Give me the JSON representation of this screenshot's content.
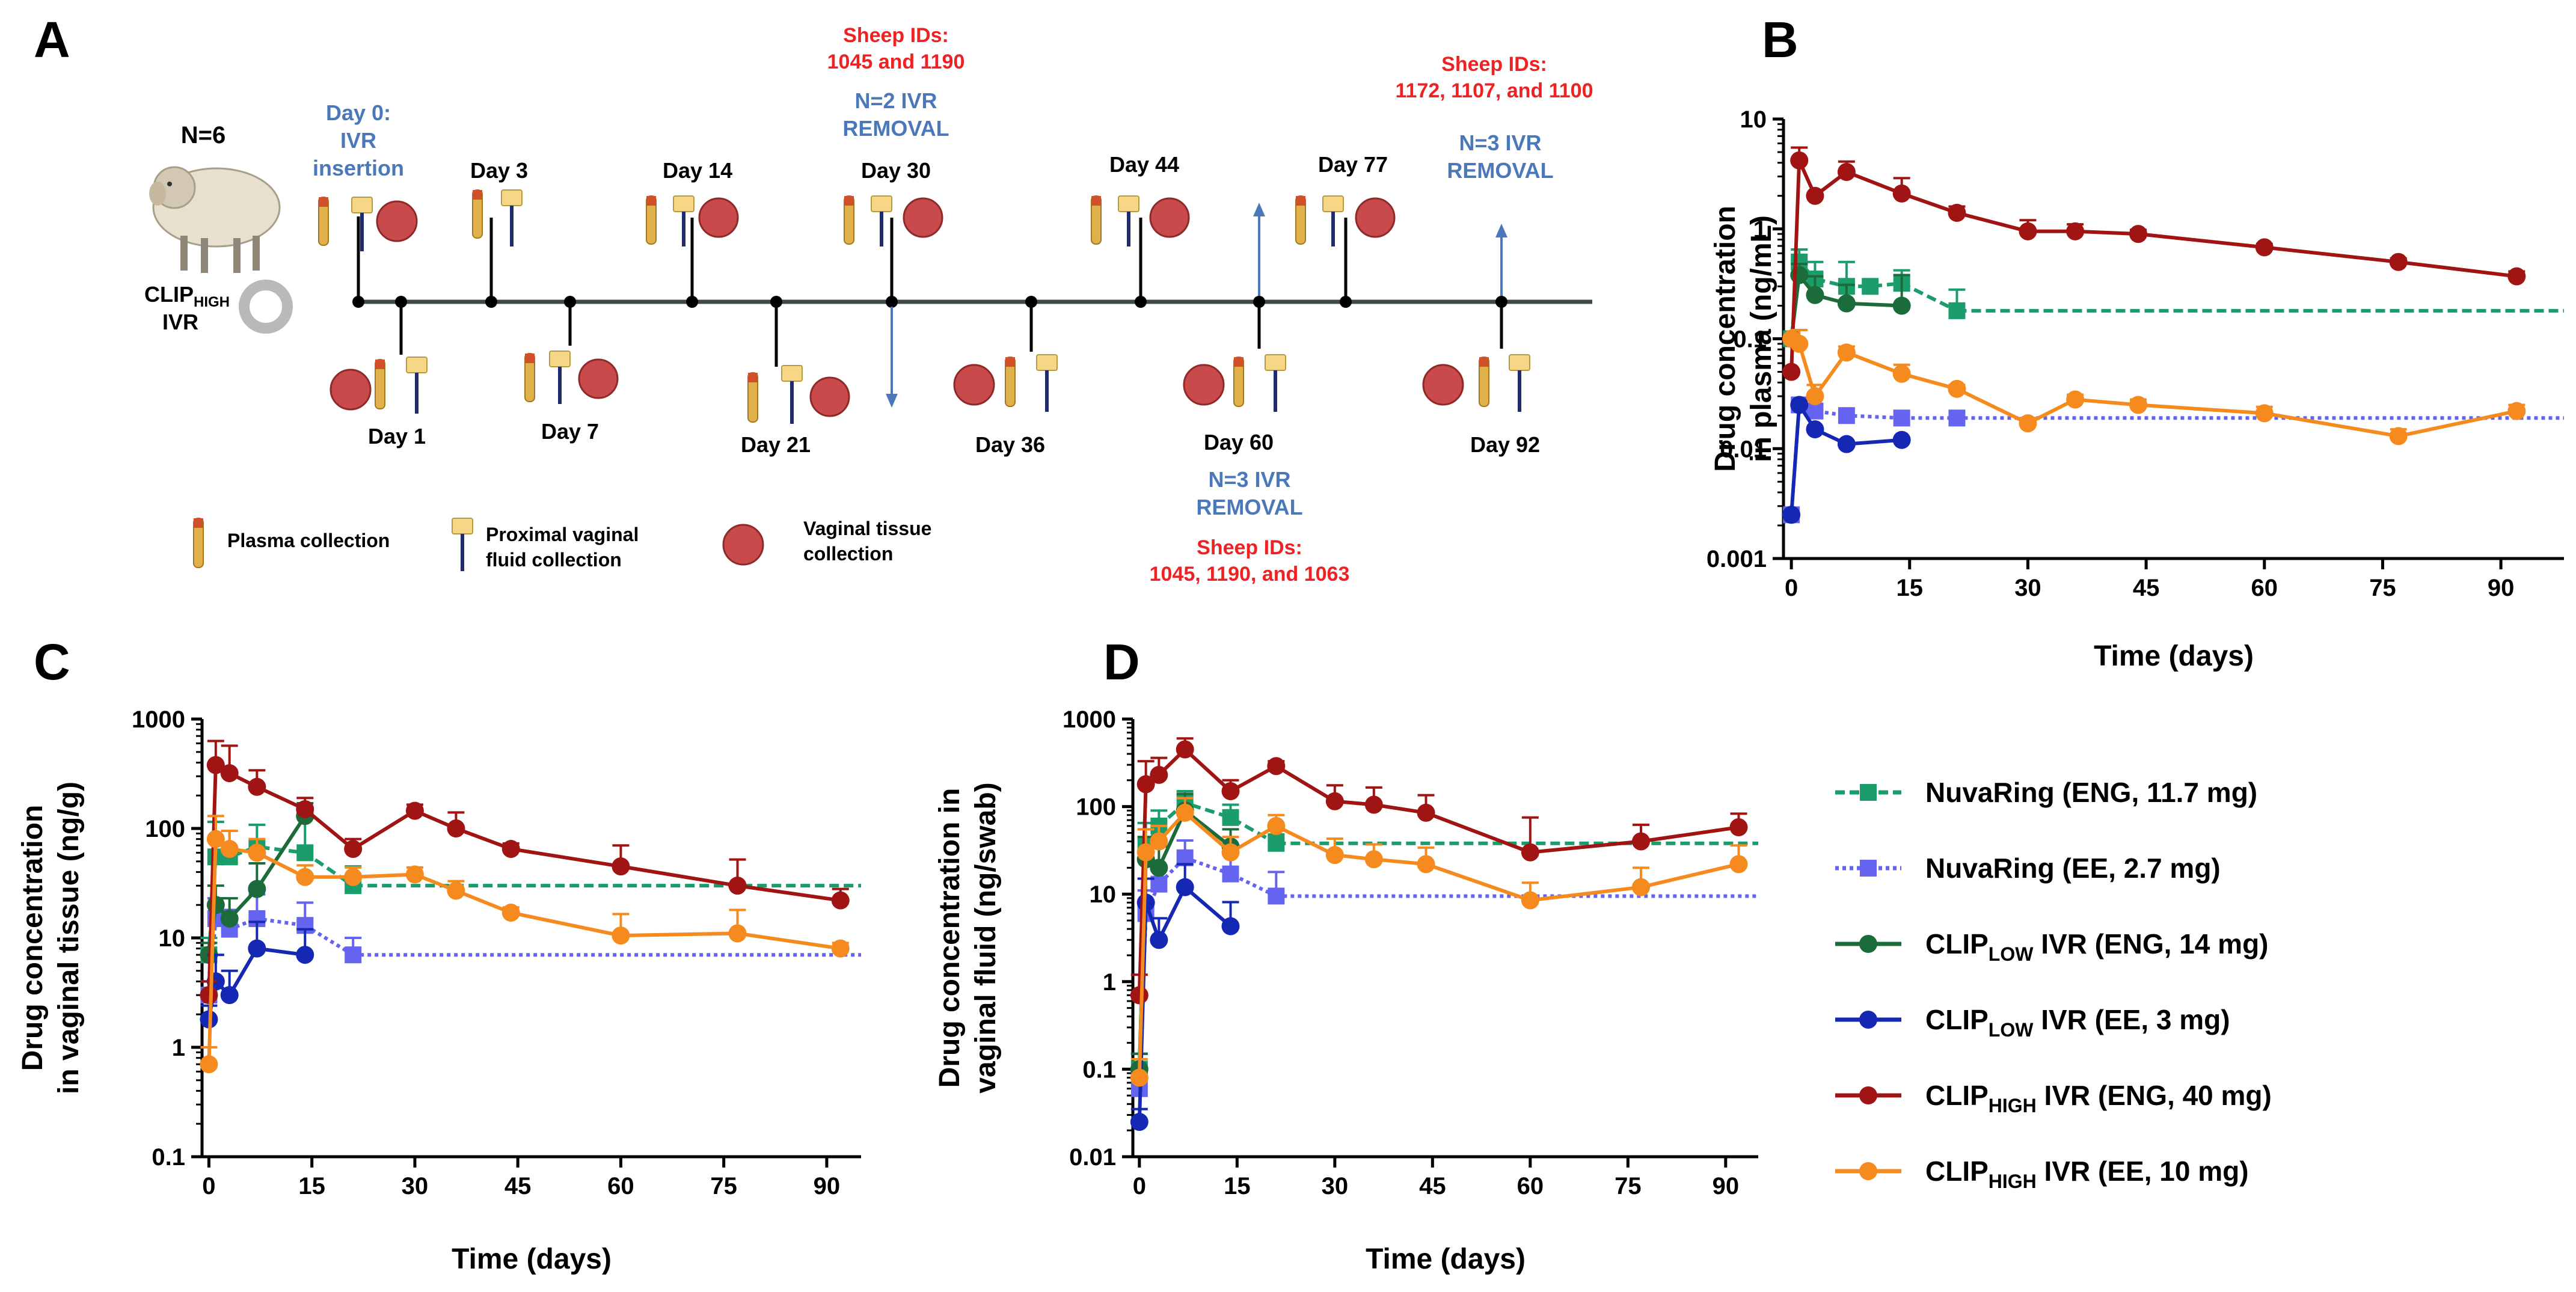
{
  "panelA": {
    "letter": "A",
    "n_label": "N=6",
    "clip_label": "CLIP",
    "clip_sub": "HIGH",
    "ivr_label": "IVR",
    "day0_line1": "Day 0:",
    "day0_line2": "IVR",
    "day0_line3": "insertion",
    "days_top": [
      "Day 3",
      "Day 14",
      "Day 30",
      "Day 44",
      "Day 77"
    ],
    "days_bottom": [
      "Day 1",
      "Day 7",
      "Day 21",
      "Day 36",
      "Day 60",
      "Day 92"
    ],
    "removal30_title": "Sheep IDs:",
    "removal30_ids": "1045 and 1190",
    "removal30_n": "N=2 IVR",
    "removal30_word": "REMOVAL",
    "removal60_n": "N=3 IVR",
    "removal60_word": "REMOVAL",
    "removal60_title": "Sheep IDs:",
    "removal60_ids": "1045, 1190, and 1063",
    "removal92_title": "Sheep IDs:",
    "removal92_ids": "1172, 1107, and 1100",
    "removal92_n": "N=3 IVR",
    "removal92_word": "REMOVAL",
    "legend_plasma": "Plasma collection",
    "legend_fluid_1": "Proximal vaginal",
    "legend_fluid_2": "fluid collection",
    "legend_tissue_1": "Vaginal tissue",
    "legend_tissue_2": "collection"
  },
  "colors": {
    "nuva_eng": "#1a9c6b",
    "nuva_ee": "#6464f0",
    "clip_low_eng": "#1c6b3a",
    "clip_low_ee": "#1428b4",
    "clip_high_eng": "#a01414",
    "clip_high_ee": "#f58a1e",
    "annot_red": "#ee2222",
    "annot_blue": "#4a78b8"
  },
  "legend": [
    {
      "pre": "NuvaRing (ENG, 11.7 mg)",
      "sub": "",
      "post": ""
    },
    {
      "pre": "NuvaRing (EE, 2.7 mg)",
      "sub": "",
      "post": ""
    },
    {
      "pre": "CLIP",
      "sub": "LOW",
      "post": " IVR (ENG, 14 mg)"
    },
    {
      "pre": "CLIP",
      "sub": "LOW",
      "post": " IVR (EE, 3 mg)"
    },
    {
      "pre": "CLIP",
      "sub": "HIGH",
      "post": " IVR (ENG, 40 mg)"
    },
    {
      "pre": "CLIP",
      "sub": "HIGH",
      "post": " IVR (EE, 10 mg)"
    }
  ],
  "chart_data": [
    {
      "panel": "B",
      "type": "line",
      "title": "",
      "ylabel_line1": "Drug concentration",
      "ylabel_line2": "in plasma (ng/mL)",
      "xlabel": "Time (days)",
      "xticks": [
        0,
        15,
        30,
        45,
        60,
        75,
        90
      ],
      "yticks": [
        "0.001",
        "0.01",
        "0.1",
        "1",
        "10"
      ],
      "xlim": [
        -1,
        98
      ],
      "ylim": [
        0.001,
        10
      ],
      "yscale": "log",
      "series": [
        {
          "name": "NuvaRing (ENG, 11.7 mg)",
          "color_key": "nuva_eng",
          "marker": "square",
          "dash": "dashed",
          "x": [
            0,
            1,
            3,
            7,
            10,
            14,
            21
          ],
          "y": [
            0.1,
            0.5,
            0.35,
            0.3,
            0.3,
            0.32,
            0.18
          ],
          "err": [
            0,
            0.15,
            0.15,
            0.2,
            0,
            0.1,
            0.1
          ],
          "ref_line": 0.18
        },
        {
          "name": "NuvaRing (EE, 2.7 mg)",
          "color_key": "nuva_ee",
          "marker": "square",
          "dash": "dotted",
          "x": [
            0,
            1,
            3,
            7,
            14,
            21
          ],
          "y": [
            0.0025,
            0.025,
            0.022,
            0.02,
            0.019,
            0.019
          ],
          "err": [
            0,
            0,
            0,
            0,
            0,
            0
          ],
          "ref_line": 0.019
        },
        {
          "name": "CLIP LOW IVR (ENG, 14 mg)",
          "color_key": "clip_low_eng",
          "marker": "circle",
          "dash": "solid",
          "x": [
            0,
            1,
            3,
            7,
            14
          ],
          "y": [
            0.1,
            0.38,
            0.25,
            0.21,
            0.2
          ],
          "err": [
            0,
            0.1,
            0.12,
            0.1,
            0.18
          ]
        },
        {
          "name": "CLIP LOW IVR (EE, 3 mg)",
          "color_key": "clip_low_ee",
          "marker": "circle",
          "dash": "solid",
          "x": [
            0,
            1,
            3,
            7,
            14
          ],
          "y": [
            0.0025,
            0.025,
            0.015,
            0.011,
            0.012
          ],
          "err": [
            0,
            0,
            0,
            0,
            0
          ]
        },
        {
          "name": "CLIP HIGH IVR (ENG, 40 mg)",
          "color_key": "clip_high_eng",
          "marker": "circle",
          "dash": "solid",
          "x": [
            0,
            1,
            3,
            7,
            14,
            21,
            30,
            36,
            44,
            60,
            77,
            92
          ],
          "y": [
            0.05,
            4.2,
            2.0,
            3.3,
            2.1,
            1.4,
            0.95,
            0.95,
            0.9,
            0.68,
            0.5,
            0.37
          ],
          "err": [
            0,
            1.3,
            0,
            0.8,
            0.8,
            0.2,
            0.25,
            0.15,
            0.08,
            0.05,
            0.04,
            0.04
          ]
        },
        {
          "name": "CLIP HIGH IVR (EE, 10 mg)",
          "color_key": "clip_high_ee",
          "marker": "circle",
          "dash": "solid",
          "x": [
            0,
            1,
            3,
            7,
            14,
            21,
            30,
            36,
            44,
            60,
            77,
            92
          ],
          "y": [
            0.1,
            0.09,
            0.03,
            0.075,
            0.048,
            0.035,
            0.017,
            0.028,
            0.025,
            0.021,
            0.013,
            0.022
          ],
          "err": [
            0,
            0.03,
            0.008,
            0.01,
            0.01,
            0.003,
            0.002,
            0.003,
            0.003,
            0.003,
            0.002,
            0.003
          ]
        }
      ]
    },
    {
      "panel": "C",
      "type": "line",
      "title": "",
      "ylabel_line1": "Drug concentration",
      "ylabel_line2": "in vaginal tissue (ng/g)",
      "xlabel": "Time (days)",
      "xticks": [
        0,
        15,
        30,
        45,
        60,
        75,
        90
      ],
      "yticks": [
        "0.1",
        "1",
        "10",
        "100",
        "1000"
      ],
      "xlim": [
        -1,
        95
      ],
      "ylim": [
        0.1,
        1000
      ],
      "yscale": "log",
      "series": [
        {
          "name": "NuvaRing (ENG, 11.7 mg)",
          "color_key": "nuva_eng",
          "marker": "square",
          "dash": "dashed",
          "x": [
            0,
            1,
            3,
            7,
            14,
            21
          ],
          "y": [
            7,
            55,
            55,
            68,
            60,
            30
          ],
          "err": [
            3,
            60,
            40,
            40,
            80,
            15
          ],
          "ref_line": 30
        },
        {
          "name": "NuvaRing (EE, 2.7 mg)",
          "color_key": "nuva_ee",
          "marker": "square",
          "dash": "dotted",
          "x": [
            0,
            1,
            3,
            7,
            14,
            21
          ],
          "y": [
            3,
            15,
            12,
            15,
            13,
            7
          ],
          "err": [
            1,
            8,
            6,
            10,
            8,
            3
          ],
          "ref_line": 7
        },
        {
          "name": "CLIP LOW IVR (ENG, 14 mg)",
          "color_key": "clip_low_eng",
          "marker": "circle",
          "dash": "solid",
          "x": [
            0,
            1,
            3,
            7,
            14
          ],
          "y": [
            7,
            20,
            15,
            28,
            130
          ],
          "err": [
            2,
            10,
            8,
            20,
            40
          ]
        },
        {
          "name": "CLIP LOW IVR (EE, 3 mg)",
          "color_key": "clip_low_ee",
          "marker": "circle",
          "dash": "solid",
          "x": [
            0,
            1,
            3,
            7,
            14
          ],
          "y": [
            1.8,
            4,
            3,
            8,
            7
          ],
          "err": [
            0.6,
            3,
            2,
            6,
            5
          ]
        },
        {
          "name": "CLIP HIGH IVR (ENG, 40 mg)",
          "color_key": "clip_high_eng",
          "marker": "circle",
          "dash": "solid",
          "x": [
            0,
            1,
            3,
            7,
            14,
            21,
            30,
            36,
            44,
            60,
            77,
            92
          ],
          "y": [
            3,
            380,
            320,
            240,
            150,
            65,
            145,
            100,
            65,
            45,
            30,
            22
          ],
          "err": [
            1,
            250,
            250,
            100,
            40,
            15,
            20,
            40,
            8,
            25,
            22,
            6
          ]
        },
        {
          "name": "CLIP HIGH IVR (EE, 10 mg)",
          "color_key": "clip_high_ee",
          "marker": "circle",
          "dash": "solid",
          "x": [
            0,
            1,
            3,
            7,
            14,
            21,
            30,
            36,
            44,
            60,
            77,
            92
          ],
          "y": [
            0.7,
            80,
            65,
            60,
            36,
            36,
            38,
            27,
            17,
            10.5,
            11,
            8
          ],
          "err": [
            0.3,
            50,
            30,
            20,
            10,
            8,
            6,
            6,
            2,
            6,
            7,
            1
          ]
        }
      ]
    },
    {
      "panel": "D",
      "type": "line",
      "title": "",
      "ylabel_line1": "Drug concentration in",
      "ylabel_line2": "vaginal fluid (ng/swab)",
      "xlabel": "Time (days)",
      "xticks": [
        0,
        15,
        30,
        45,
        60,
        75,
        90
      ],
      "yticks": [
        "0.01",
        "0.1",
        "1",
        "10",
        "100",
        "1000"
      ],
      "xlim": [
        -1,
        95
      ],
      "ylim": [
        0.01,
        1000
      ],
      "yscale": "log",
      "series": [
        {
          "name": "NuvaRing (ENG, 11.7 mg)",
          "color_key": "nuva_eng",
          "marker": "square",
          "dash": "dashed",
          "x": [
            0,
            1,
            3,
            7,
            14,
            21
          ],
          "y": [
            0.1,
            35,
            60,
            110,
            75,
            38
          ],
          "err": [
            0.05,
            30,
            30,
            40,
            30,
            10
          ],
          "ref_line": 38
        },
        {
          "name": "NuvaRing (EE, 2.7 mg)",
          "color_key": "nuva_ee",
          "marker": "square",
          "dash": "dotted",
          "x": [
            0,
            1,
            3,
            7,
            14,
            21
          ],
          "y": [
            0.06,
            6,
            13,
            26,
            17,
            9.5
          ],
          "err": [
            0.03,
            5,
            8,
            15,
            16,
            8.4
          ],
          "ref_line": 9.5
        },
        {
          "name": "CLIP LOW IVR (ENG, 14 mg)",
          "color_key": "clip_low_eng",
          "marker": "circle",
          "dash": "solid",
          "x": [
            0,
            1,
            3,
            7,
            14
          ],
          "y": [
            0.1,
            25,
            20,
            90,
            35
          ],
          "err": [
            0.05,
            20,
            15,
            50,
            20
          ]
        },
        {
          "name": "CLIP LOW IVR (EE, 3 mg)",
          "color_key": "clip_low_ee",
          "marker": "circle",
          "dash": "solid",
          "x": [
            0,
            1,
            3,
            7,
            14
          ],
          "y": [
            0.025,
            8,
            3,
            12,
            4.3
          ],
          "err": [
            0.01,
            7,
            2.3,
            10,
            3.8
          ]
        },
        {
          "name": "CLIP HIGH IVR (ENG, 40 mg)",
          "color_key": "clip_high_eng",
          "marker": "circle",
          "dash": "solid",
          "x": [
            0,
            1,
            3,
            7,
            14,
            21,
            30,
            36,
            44,
            60,
            77,
            92
          ],
          "y": [
            0.7,
            180,
            230,
            450,
            150,
            290,
            115,
            105,
            85,
            30,
            40,
            58
          ],
          "err": [
            0.5,
            150,
            130,
            150,
            50,
            40,
            60,
            60,
            50,
            45,
            22,
            25
          ]
        },
        {
          "name": "CLIP HIGH IVR (EE, 10 mg)",
          "color_key": "clip_high_ee",
          "marker": "circle",
          "dash": "solid",
          "x": [
            0,
            1,
            3,
            7,
            14,
            21,
            30,
            36,
            44,
            60,
            77,
            92
          ],
          "y": [
            0.08,
            30,
            40,
            85,
            30,
            60,
            28,
            25,
            22,
            8.5,
            12,
            22
          ],
          "err": [
            0.05,
            25,
            20,
            40,
            15,
            20,
            15,
            12,
            12,
            5,
            8,
            14
          ]
        }
      ]
    }
  ]
}
